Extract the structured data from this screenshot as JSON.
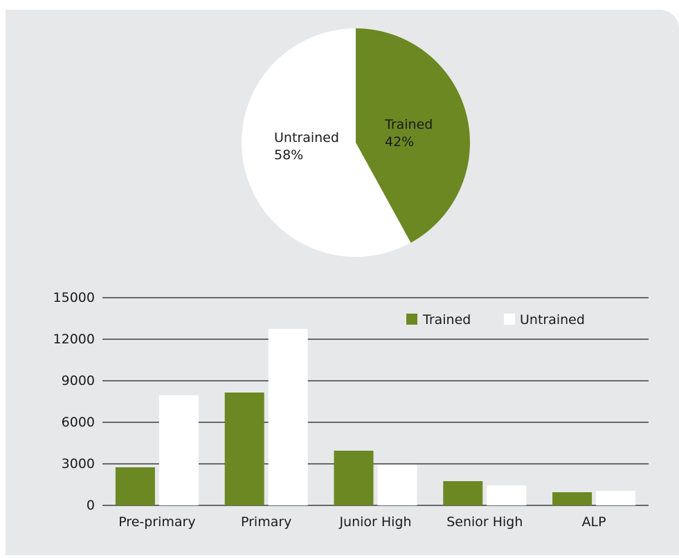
{
  "colors": {
    "trained": "#6b8823",
    "untrained": "#ffffff",
    "panel": "#e7e8e9",
    "grid": "#1a1a1a"
  },
  "chart_data": [
    {
      "type": "pie",
      "slices": [
        {
          "label": "Trained",
          "value": 42,
          "value_label": "42%",
          "color": "#6b8823"
        },
        {
          "label": "Untrained",
          "value": 58,
          "value_label": "58%",
          "color": "#ffffff"
        }
      ]
    },
    {
      "type": "bar",
      "categories": [
        "Pre-primary",
        "Primary",
        "Junior High",
        "Senior High",
        "ALP"
      ],
      "series": [
        {
          "name": "Trained",
          "color": "#6b8823",
          "values": [
            2750,
            8150,
            3950,
            1750,
            950
          ]
        },
        {
          "name": "Untrained",
          "color": "#ffffff",
          "values": [
            7950,
            12750,
            2950,
            1450,
            1050
          ]
        }
      ],
      "yticks": [
        0,
        3000,
        6000,
        9000,
        12000,
        15000
      ],
      "ylim": [
        0,
        15000
      ],
      "grid": true,
      "legend_position": "top-right"
    }
  ]
}
